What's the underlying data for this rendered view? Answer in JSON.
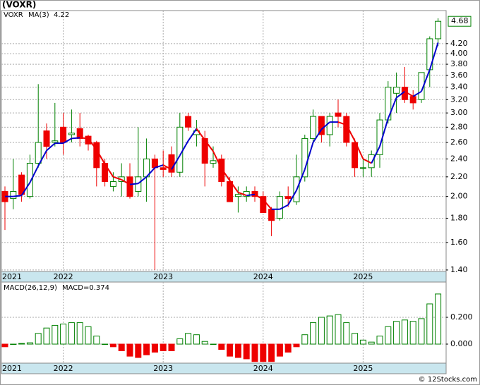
{
  "chart_data": [
    {
      "type": "candlestick",
      "title": "(VOXR)",
      "ticker": "VOXR",
      "log": true,
      "grid": true,
      "up_color": "#008000",
      "down_color": "#ee0000",
      "categories": [
        "2021",
        null,
        null,
        null,
        null,
        null,
        null,
        "2022",
        null,
        null,
        null,
        null,
        null,
        null,
        null,
        null,
        null,
        null,
        null,
        "2023",
        null,
        null,
        null,
        null,
        null,
        null,
        null,
        null,
        null,
        null,
        null,
        "2024",
        null,
        null,
        null,
        null,
        null,
        null,
        null,
        null,
        null,
        null,
        null,
        "2025",
        null,
        null,
        null,
        null,
        null,
        null,
        null,
        null,
        null
      ],
      "open": [
        2.05,
        1.98,
        2.22,
        2.0,
        2.35,
        2.75,
        2.6,
        2.8,
        2.7,
        2.78,
        2.68,
        2.6,
        2.35,
        2.1,
        2.15,
        2.2,
        2.05,
        2.2,
        2.4,
        2.3,
        2.45,
        2.25,
        2.95,
        2.7,
        2.65,
        2.35,
        2.4,
        2.15,
        2.0,
        2.0,
        2.05,
        2.0,
        1.88,
        1.8,
        2.0,
        1.95,
        2.2,
        2.65,
        2.95,
        2.7,
        3.0,
        2.95,
        2.6,
        2.3,
        2.3,
        2.45,
        2.9,
        3.3,
        3.4,
        3.25,
        3.2,
        3.7,
        4.3
      ],
      "high": [
        2.1,
        2.4,
        2.25,
        2.45,
        3.45,
        2.85,
        3.15,
        3.0,
        3.05,
        3.0,
        2.7,
        2.62,
        2.4,
        2.25,
        2.35,
        2.35,
        2.8,
        2.65,
        2.45,
        2.5,
        2.55,
        3.0,
        3.0,
        2.9,
        2.75,
        2.55,
        2.45,
        2.2,
        2.1,
        2.1,
        2.1,
        2.05,
        1.9,
        2.05,
        2.1,
        2.45,
        2.7,
        3.05,
        2.95,
        3.0,
        3.2,
        3.0,
        2.65,
        2.4,
        2.5,
        3.0,
        3.5,
        3.65,
        3.75,
        3.35,
        3.65,
        4.35,
        4.75
      ],
      "low": [
        1.7,
        1.88,
        1.95,
        1.98,
        2.3,
        2.4,
        2.55,
        2.45,
        2.6,
        2.55,
        2.5,
        2.1,
        2.1,
        2.05,
        2.0,
        1.98,
        2.0,
        1.95,
        1.4,
        2.2,
        2.2,
        2.2,
        2.75,
        2.55,
        2.1,
        2.3,
        2.1,
        1.95,
        1.85,
        1.95,
        1.95,
        1.85,
        1.65,
        1.78,
        1.9,
        1.92,
        2.15,
        2.6,
        2.6,
        2.55,
        2.8,
        2.55,
        2.2,
        2.2,
        2.2,
        2.3,
        2.85,
        3.0,
        3.15,
        3.05,
        3.15,
        3.4,
        4.15
      ],
      "close": [
        1.95,
        2.05,
        2.02,
        2.35,
        2.6,
        2.55,
        2.62,
        2.6,
        2.72,
        2.65,
        2.58,
        2.3,
        2.15,
        2.15,
        2.2,
        2.0,
        2.2,
        2.4,
        2.3,
        2.28,
        2.25,
        2.8,
        2.8,
        2.75,
        2.35,
        2.38,
        2.15,
        1.95,
        2.02,
        2.05,
        2.0,
        1.85,
        1.78,
        2.0,
        1.98,
        2.2,
        2.65,
        2.95,
        2.7,
        2.95,
        2.95,
        2.6,
        2.3,
        2.3,
        2.45,
        2.9,
        3.4,
        3.4,
        3.2,
        3.15,
        3.65,
        4.3,
        4.68
      ],
      "ma": {
        "name": "MA(3)",
        "up_color": "#0000cc",
        "down_color": "#ee0000",
        "values": [
          2.0,
          2.0,
          2.01,
          2.14,
          2.32,
          2.5,
          2.59,
          2.59,
          2.65,
          2.66,
          2.65,
          2.51,
          2.34,
          2.2,
          2.17,
          2.12,
          2.13,
          2.2,
          2.3,
          2.33,
          2.28,
          2.44,
          2.62,
          2.78,
          2.63,
          2.49,
          2.29,
          2.16,
          2.04,
          2.01,
          2.02,
          1.97,
          1.88,
          1.88,
          1.92,
          2.06,
          2.28,
          2.6,
          2.77,
          2.87,
          2.87,
          2.83,
          2.62,
          2.4,
          2.35,
          2.55,
          2.92,
          3.23,
          3.33,
          3.25,
          3.33,
          3.7,
          4.22
        ]
      },
      "ylim": [
        1.39,
        4.93
      ],
      "yticks": [
        {
          "value": 1.4,
          "label": "1.40"
        },
        {
          "value": 1.6,
          "label": "1.60"
        },
        {
          "value": 1.8,
          "label": "1.80"
        },
        {
          "value": 2.0,
          "label": "2.00"
        },
        {
          "value": 2.2,
          "label": "2.20"
        },
        {
          "value": 2.4,
          "label": "2.40"
        },
        {
          "value": 2.6,
          "label": "2.60"
        },
        {
          "value": 2.8,
          "label": "2.80"
        },
        {
          "value": 3.0,
          "label": "3.00"
        },
        {
          "value": 3.2,
          "label": "3.20"
        },
        {
          "value": 3.4,
          "label": "3.40"
        },
        {
          "value": 3.6,
          "label": "3.60"
        },
        {
          "value": 3.8,
          "label": "3.80"
        },
        {
          "value": 4.0,
          "label": "4.00"
        },
        {
          "value": 4.2,
          "label": "4.20"
        }
      ]
    },
    {
      "type": "bar",
      "title": "MACD(26,12,9)",
      "value_label": "MACD=0.374",
      "grid": true,
      "pos_color": "#008000",
      "neg_color": "#ee0000",
      "categories": [
        "2021",
        null,
        null,
        null,
        null,
        null,
        null,
        "2022",
        null,
        null,
        null,
        null,
        null,
        null,
        null,
        null,
        null,
        null,
        null,
        "2023",
        null,
        null,
        null,
        null,
        null,
        null,
        null,
        null,
        null,
        null,
        null,
        "2024",
        null,
        null,
        null,
        null,
        null,
        null,
        null,
        null,
        null,
        null,
        null,
        "2025",
        null,
        null,
        null,
        null,
        null,
        null,
        null,
        null,
        null
      ],
      "values": [
        -0.02,
        0.0,
        0.005,
        0.01,
        0.08,
        0.12,
        0.14,
        0.15,
        0.16,
        0.16,
        0.13,
        0.06,
        0.0,
        -0.02,
        -0.05,
        -0.09,
        -0.1,
        -0.08,
        -0.06,
        -0.05,
        -0.05,
        0.04,
        0.08,
        0.07,
        0.02,
        0.0,
        -0.04,
        -0.09,
        -0.1,
        -0.11,
        -0.13,
        -0.13,
        -0.13,
        -0.09,
        -0.06,
        -0.02,
        0.07,
        0.16,
        0.2,
        0.21,
        0.22,
        0.16,
        0.08,
        0.03,
        0.015,
        0.06,
        0.13,
        0.17,
        0.18,
        0.17,
        0.19,
        0.3,
        0.374
      ],
      "ylim": [
        -0.142,
        0.463
      ],
      "yticks": [
        {
          "value": 0.2,
          "label": "0.200"
        },
        {
          "value": 0.0,
          "label": "0.000"
        }
      ]
    }
  ],
  "footer": "© 12Stocks.com"
}
